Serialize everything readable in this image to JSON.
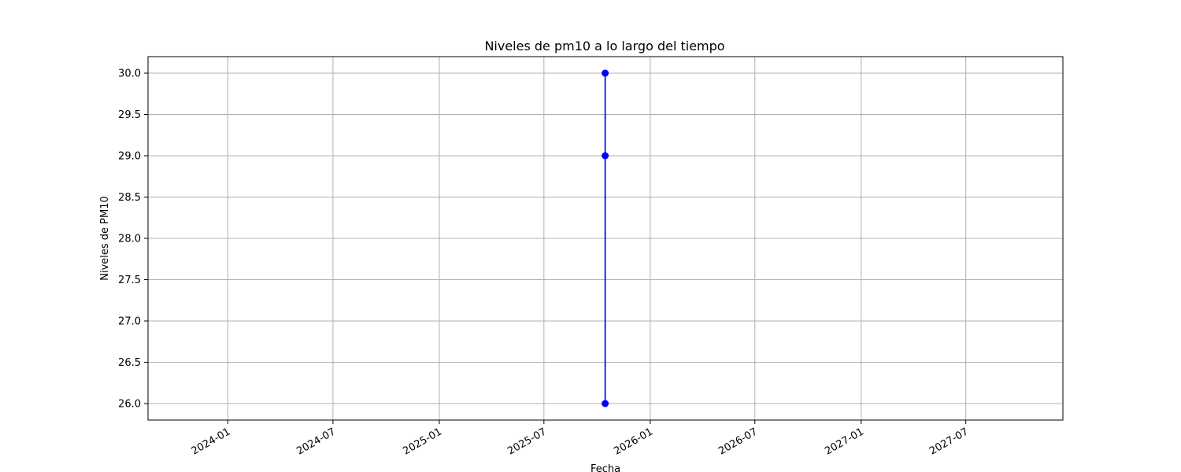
{
  "chart_data": {
    "type": "line",
    "title": "Niveles de pm10 a lo largo del tiempo",
    "xlabel": "Fecha",
    "ylabel": "Niveles de PM10",
    "x_is_date": true,
    "xlim": [
      "2023-08-16",
      "2027-12-16"
    ],
    "ylim": [
      25.8,
      30.2
    ],
    "grid": true,
    "x_ticks": [
      "2024-01",
      "2024-07",
      "2025-01",
      "2025-07",
      "2026-01",
      "2026-07",
      "2027-01",
      "2027-07"
    ],
    "y_ticks": [
      26.0,
      26.5,
      27.0,
      27.5,
      28.0,
      28.5,
      29.0,
      29.5,
      30.0
    ],
    "series": [
      {
        "color": "#0000ff",
        "marker": "circle",
        "points": [
          {
            "x": "2025-10-15",
            "y": 26.0
          },
          {
            "x": "2025-10-15",
            "y": 29.0
          },
          {
            "x": "2025-10-15",
            "y": 30.0
          }
        ]
      }
    ]
  }
}
